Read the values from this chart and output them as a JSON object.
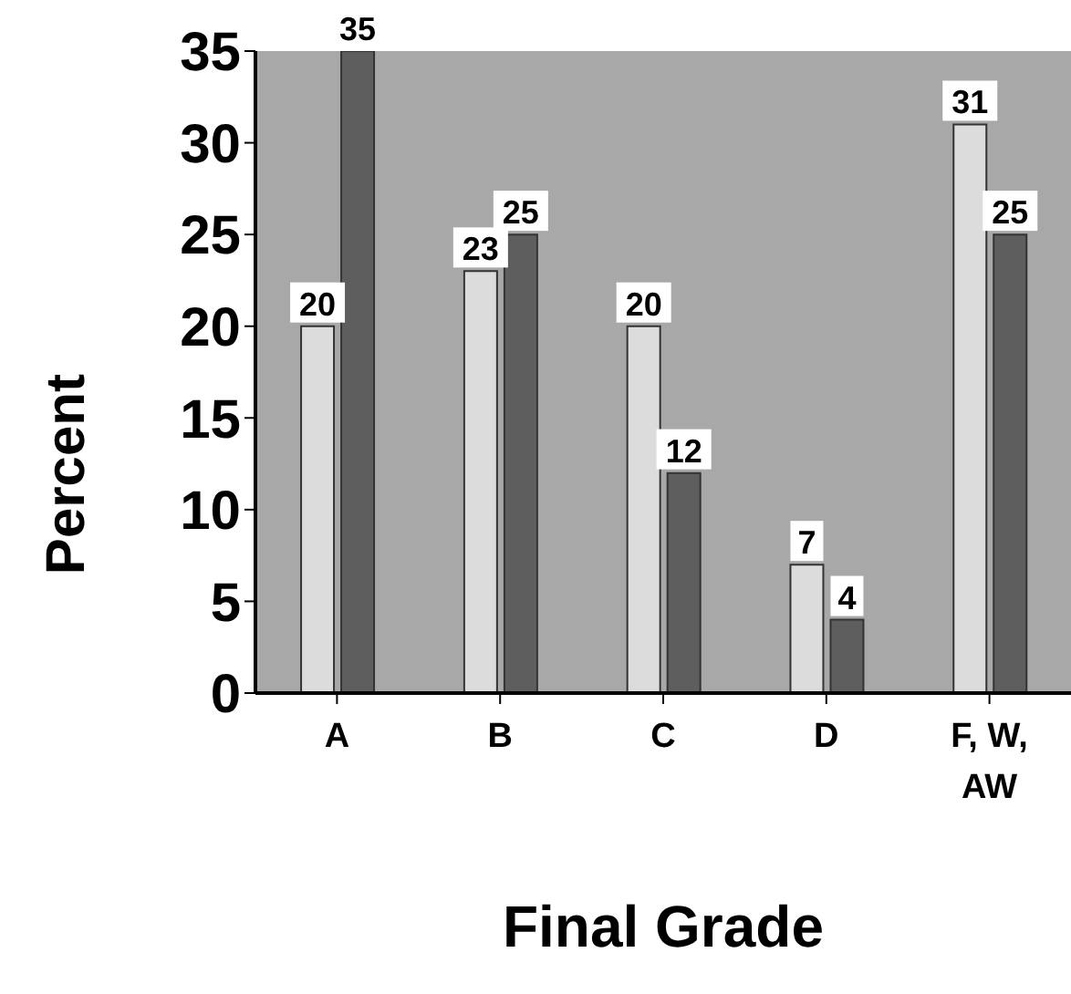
{
  "chart_data": {
    "type": "bar",
    "xlabel": "Final Grade",
    "ylabel": "Percent",
    "categories": [
      "A",
      "B",
      "C",
      "D",
      "F, W, AW"
    ],
    "series": [
      {
        "color": "#dcdcdc",
        "values": [
          20,
          23,
          20,
          7,
          31
        ]
      },
      {
        "color": "#5e5e5e",
        "values": [
          35,
          25,
          12,
          4,
          25
        ]
      }
    ],
    "ylim": [
      0,
      35
    ],
    "yticks": [
      0,
      5,
      10,
      15,
      20,
      25,
      30,
      35
    ],
    "data_labels": true,
    "grid": false
  }
}
